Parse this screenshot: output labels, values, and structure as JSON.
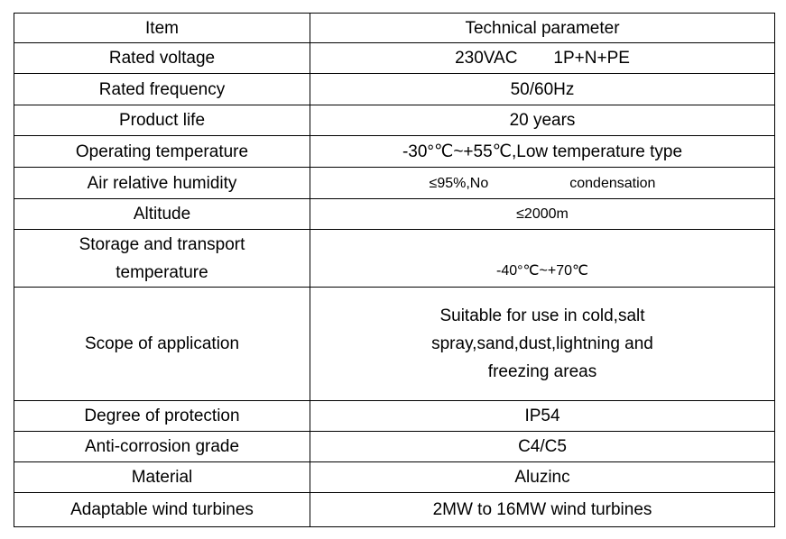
{
  "header": {
    "item": "Item",
    "param": "Technical parameter"
  },
  "rows": [
    {
      "item": "Rated voltage",
      "value": "230VAC",
      "value2": "1P+N+PE"
    },
    {
      "item": "Rated frequency",
      "value": "50/60Hz"
    },
    {
      "item": "Product life",
      "value": "20 years"
    },
    {
      "item": "Operating temperature",
      "value": "-30°℃~+55℃,Low temperature type"
    },
    {
      "item": "Air relative humidity",
      "value": "≤95%,No",
      "value2": "condensation"
    },
    {
      "item": "Altitude",
      "value": "≤2000m"
    },
    {
      "item": "Storage and transport temperature",
      "value": "-40°℃~+70℃"
    },
    {
      "item": "Scope of application",
      "value": "Suitable for use in cold,salt spray,sand,dust,lightning and freezing areas"
    },
    {
      "item": "Degree of protection",
      "value": "IP54"
    },
    {
      "item": "Anti-corrosion grade",
      "value": "C4/C5"
    },
    {
      "item": "Material",
      "value": "Aluzinc"
    },
    {
      "item": "Adaptable wind turbines",
      "value": "2MW to 16MW wind turbines"
    }
  ]
}
